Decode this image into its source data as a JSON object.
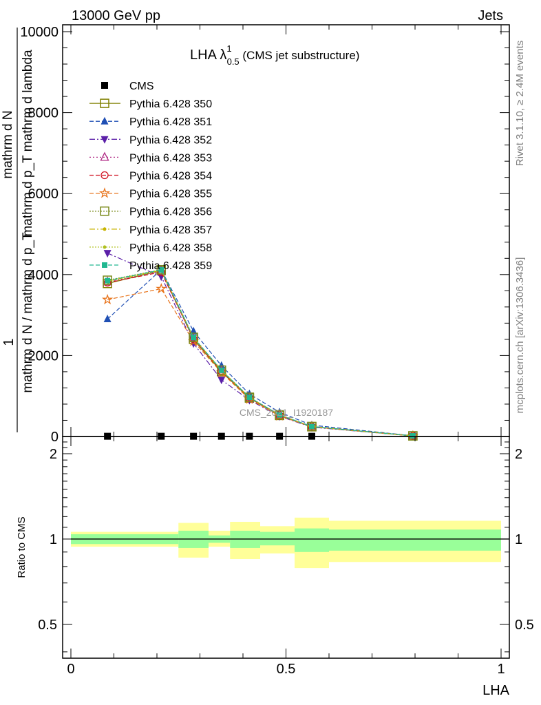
{
  "header": {
    "left": "13000 GeV pp",
    "right": "Jets"
  },
  "side": {
    "rivet": "Rivet 3.1.10, ≥ 2.4M events",
    "mcplots": "mcplots.cern.ch [arXiv:1306.3436]"
  },
  "watermark": "CMS_2021_I1920187",
  "chart_data": [
    {
      "type": "line",
      "title": {
        "main": "LHA λ",
        "sup": "1",
        "sub": "0.5",
        "suffix": " (CMS jet substructure)"
      },
      "ylabel": {
        "one": "1",
        "numerator": "mathrm d N",
        "denominator": "mathrm d N / mathrm d p_T",
        "right": "mathrm d p_T mathrm d lambda"
      },
      "xlim": [
        0,
        1
      ],
      "ylim": [
        0,
        10000
      ],
      "yticks": [
        0,
        2000,
        4000,
        6000,
        8000,
        10000
      ],
      "yticklabels": [
        "0",
        "2000",
        "4000",
        "6000",
        "8000",
        "10000"
      ],
      "bin_edges": [
        0.0,
        0.25,
        0.32,
        0.37,
        0.44,
        0.52,
        0.6,
        1.0
      ],
      "x": [
        0.085,
        0.21,
        0.285,
        0.35,
        0.415,
        0.485,
        0.56,
        0.795
      ],
      "series": [
        {
          "name": "CMS",
          "color": "#000000",
          "marker": "square",
          "dash": "none",
          "values": [
            6,
            6,
            6,
            6,
            6,
            6,
            6,
            null
          ]
        },
        {
          "name": "Pythia 6.428 350",
          "color": "#808000",
          "marker": "open-square",
          "dash": "solid",
          "values": [
            3780,
            4100,
            2400,
            1600,
            950,
            520,
            240,
            15
          ]
        },
        {
          "name": "Pythia 6.428 351",
          "color": "#1f4fb4",
          "marker": "triangle-up",
          "dash": "6,3",
          "values": [
            2900,
            4120,
            2600,
            1750,
            1050,
            600,
            280,
            18
          ]
        },
        {
          "name": "Pythia 6.428 352",
          "color": "#5b1fa8",
          "marker": "triangle-down",
          "dash": "8,3,2,3",
          "values": [
            4530,
            3950,
            2300,
            1400,
            900,
            500,
            230,
            14
          ]
        },
        {
          "name": "Pythia 6.428 353",
          "color": "#b02a85",
          "marker": "open-triangle",
          "dash": "2,3",
          "values": [
            3820,
            4080,
            2420,
            1620,
            960,
            530,
            245,
            15
          ]
        },
        {
          "name": "Pythia 6.428 354",
          "color": "#d01020",
          "marker": "open-circle",
          "dash": "6,3",
          "values": [
            3800,
            4060,
            2410,
            1610,
            955,
            525,
            243,
            15
          ]
        },
        {
          "name": "Pythia 6.428 355",
          "color": "#e8731a",
          "marker": "open-star",
          "dash": "6,3",
          "values": [
            3380,
            3650,
            2350,
            1580,
            920,
            510,
            238,
            14
          ]
        },
        {
          "name": "Pythia 6.428 356",
          "color": "#7a8a1a",
          "marker": "open-square",
          "dash": "2,2",
          "values": [
            3860,
            4120,
            2450,
            1640,
            970,
            535,
            248,
            16
          ]
        },
        {
          "name": "Pythia 6.428 357",
          "color": "#c8b400",
          "marker": "dot",
          "dash": "8,3,2,3",
          "values": [
            3840,
            4110,
            2440,
            1630,
            965,
            532,
            246,
            15
          ]
        },
        {
          "name": "Pythia 6.428 358",
          "color": "#b0c020",
          "marker": "dot",
          "dash": "2,2",
          "values": [
            3830,
            4100,
            2430,
            1625,
            962,
            530,
            245,
            15
          ]
        },
        {
          "name": "Pythia 6.428 359",
          "color": "#20b890",
          "marker": "filled-square",
          "dash": "6,3",
          "values": [
            3850,
            4115,
            2445,
            1635,
            968,
            534,
            247,
            16
          ]
        }
      ]
    },
    {
      "type": "area",
      "ylabel": "Ratio to CMS",
      "xlabel": "LHA",
      "xlim": [
        0,
        1
      ],
      "ylim": [
        0.38,
        2.3
      ],
      "yscale": "log",
      "yticks": [
        0.5,
        1,
        2
      ],
      "yticklabels": [
        "0.5",
        "1",
        "2"
      ],
      "xticks": [
        0,
        0.5,
        1
      ],
      "xticklabels": [
        "0",
        "0.5",
        "1"
      ],
      "bin_edges": [
        0.0,
        0.25,
        0.32,
        0.37,
        0.44,
        0.52,
        0.6,
        1.0
      ],
      "band_stat": {
        "color": "#99ff99",
        "lower": [
          0.96,
          0.93,
          0.97,
          0.93,
          0.95,
          0.9,
          0.91
        ],
        "upper": [
          1.04,
          1.07,
          1.03,
          1.07,
          1.06,
          1.09,
          1.08
        ]
      },
      "band_total": {
        "color": "#ffff99",
        "lower": [
          0.94,
          0.86,
          0.94,
          0.85,
          0.89,
          0.79,
          0.83
        ],
        "upper": [
          1.06,
          1.14,
          1.07,
          1.15,
          1.11,
          1.19,
          1.16
        ]
      },
      "reference": 1
    }
  ]
}
